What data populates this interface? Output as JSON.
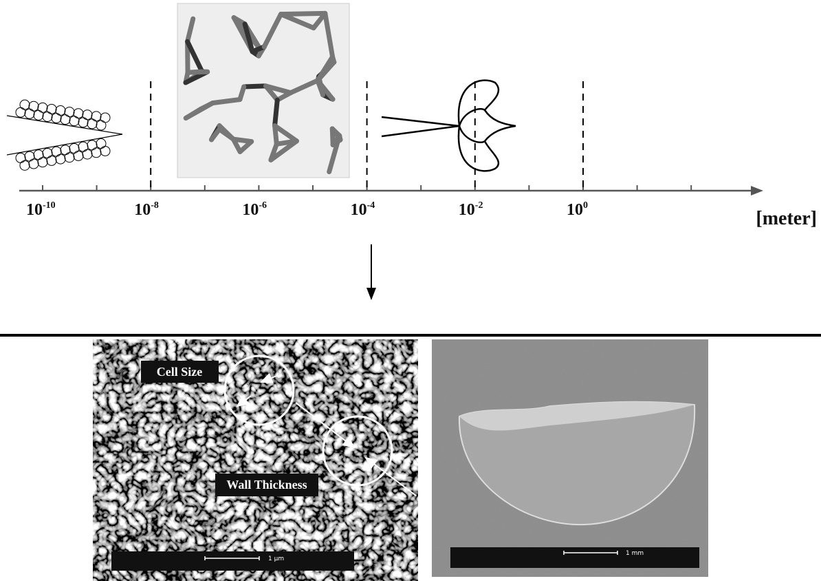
{
  "axis": {
    "labels": [
      {
        "base": "10",
        "exponent": "-10"
      },
      {
        "base": "10",
        "exponent": "-8"
      },
      {
        "base": "10",
        "exponent": "-6"
      },
      {
        "base": "10",
        "exponent": "-4"
      },
      {
        "base": "10",
        "exponent": "-2"
      },
      {
        "base": "10",
        "exponent": "0"
      }
    ],
    "unit": "[meter]"
  },
  "micrograph_left": {
    "label_1": "Cell Size",
    "label_2": "Wall Thickness",
    "scale": "1 μm"
  },
  "micrograph_right": {
    "scale": "1 mm"
  }
}
